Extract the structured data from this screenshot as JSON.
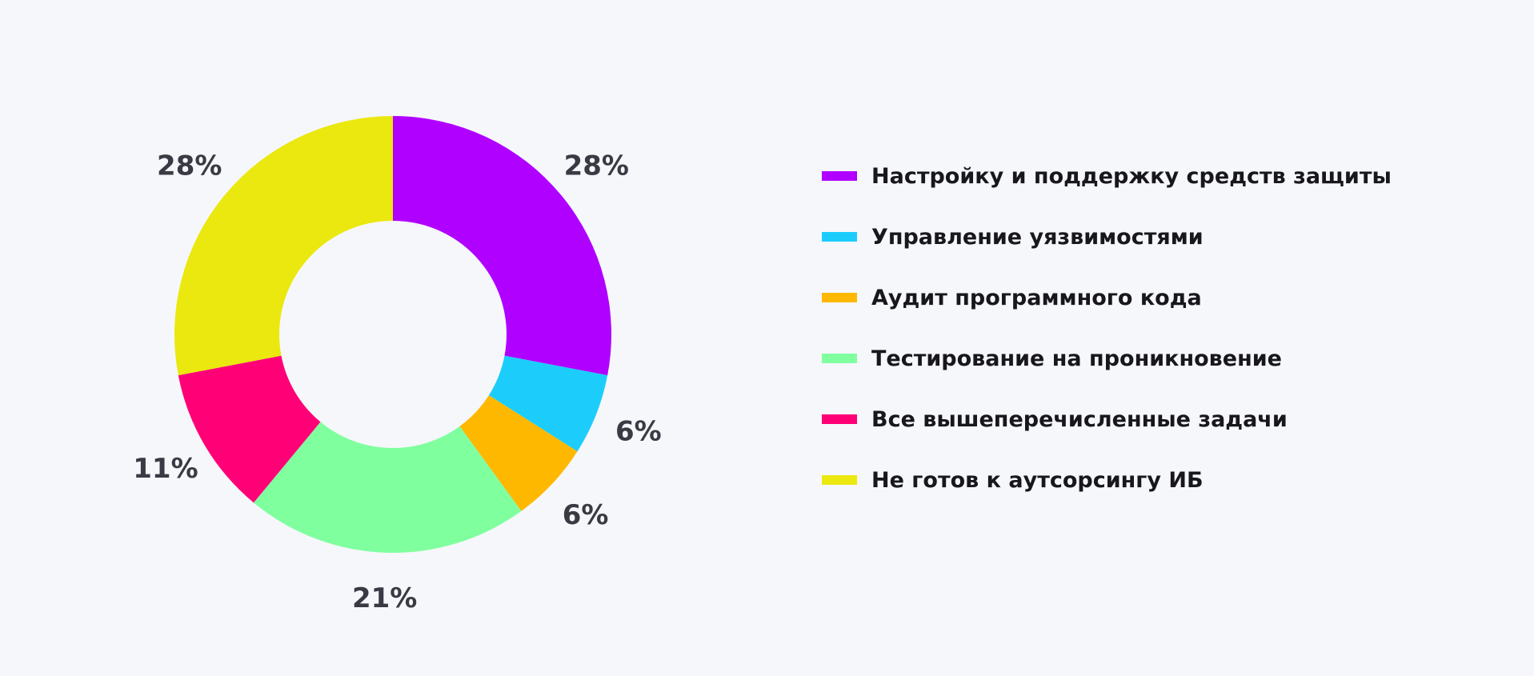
{
  "chart_data": {
    "type": "pie",
    "donut": true,
    "title": "",
    "legend_position": "right",
    "categories": [
      "Настройку и поддержку средств защиты",
      "Управление уязвимостями",
      "Аудит программного кода",
      "Тестирование на проникновение",
      "Все вышеперечисленные задачи",
      "Не готов к аутсорсингу ИБ"
    ],
    "values": [
      28,
      6,
      6,
      21,
      11,
      28
    ],
    "labels": [
      "28%",
      "6%",
      "6%",
      "21%",
      "11%",
      "28%"
    ],
    "colors": [
      "#b000ff",
      "#1ccdfc",
      "#ffb800",
      "#80ff9f",
      "#ff0077",
      "#eae80e"
    ]
  }
}
